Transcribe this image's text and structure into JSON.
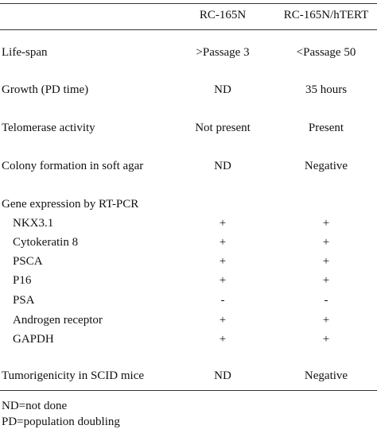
{
  "header": {
    "col1": "",
    "col2": "RC-165N",
    "col3": "RC-165N/hTERT"
  },
  "rows": [
    {
      "label": "Life-span",
      "a": ">Passage 3",
      "b": "<Passage 50"
    },
    {
      "label": "Growth (PD time)",
      "a": "ND",
      "b": "35 hours"
    },
    {
      "label": "Telomerase activity",
      "a": "Not present",
      "b": "Present"
    },
    {
      "label": "Colony formation in soft agar",
      "a": "ND",
      "b": "Negative"
    },
    {
      "label": "Gene expression by RT-PCR",
      "a": "",
      "b": ""
    },
    {
      "label": "NKX3.1",
      "a": "+",
      "b": "+"
    },
    {
      "label": "Cytokeratin 8",
      "a": "+",
      "b": "+"
    },
    {
      "label": "PSCA",
      "a": "+",
      "b": "+"
    },
    {
      "label": "P16",
      "a": "+",
      "b": "+"
    },
    {
      "label": "PSA",
      "a": "-",
      "b": "-"
    },
    {
      "label": "Androgen receptor",
      "a": "+",
      "b": "+"
    },
    {
      "label": "GAPDH",
      "a": "+",
      "b": "+"
    },
    {
      "label": "Tumorigenicity in SCID mice",
      "a": "ND",
      "b": "Negative"
    }
  ],
  "footnotes": [
    "ND=not done",
    "PD=population doubling"
  ]
}
